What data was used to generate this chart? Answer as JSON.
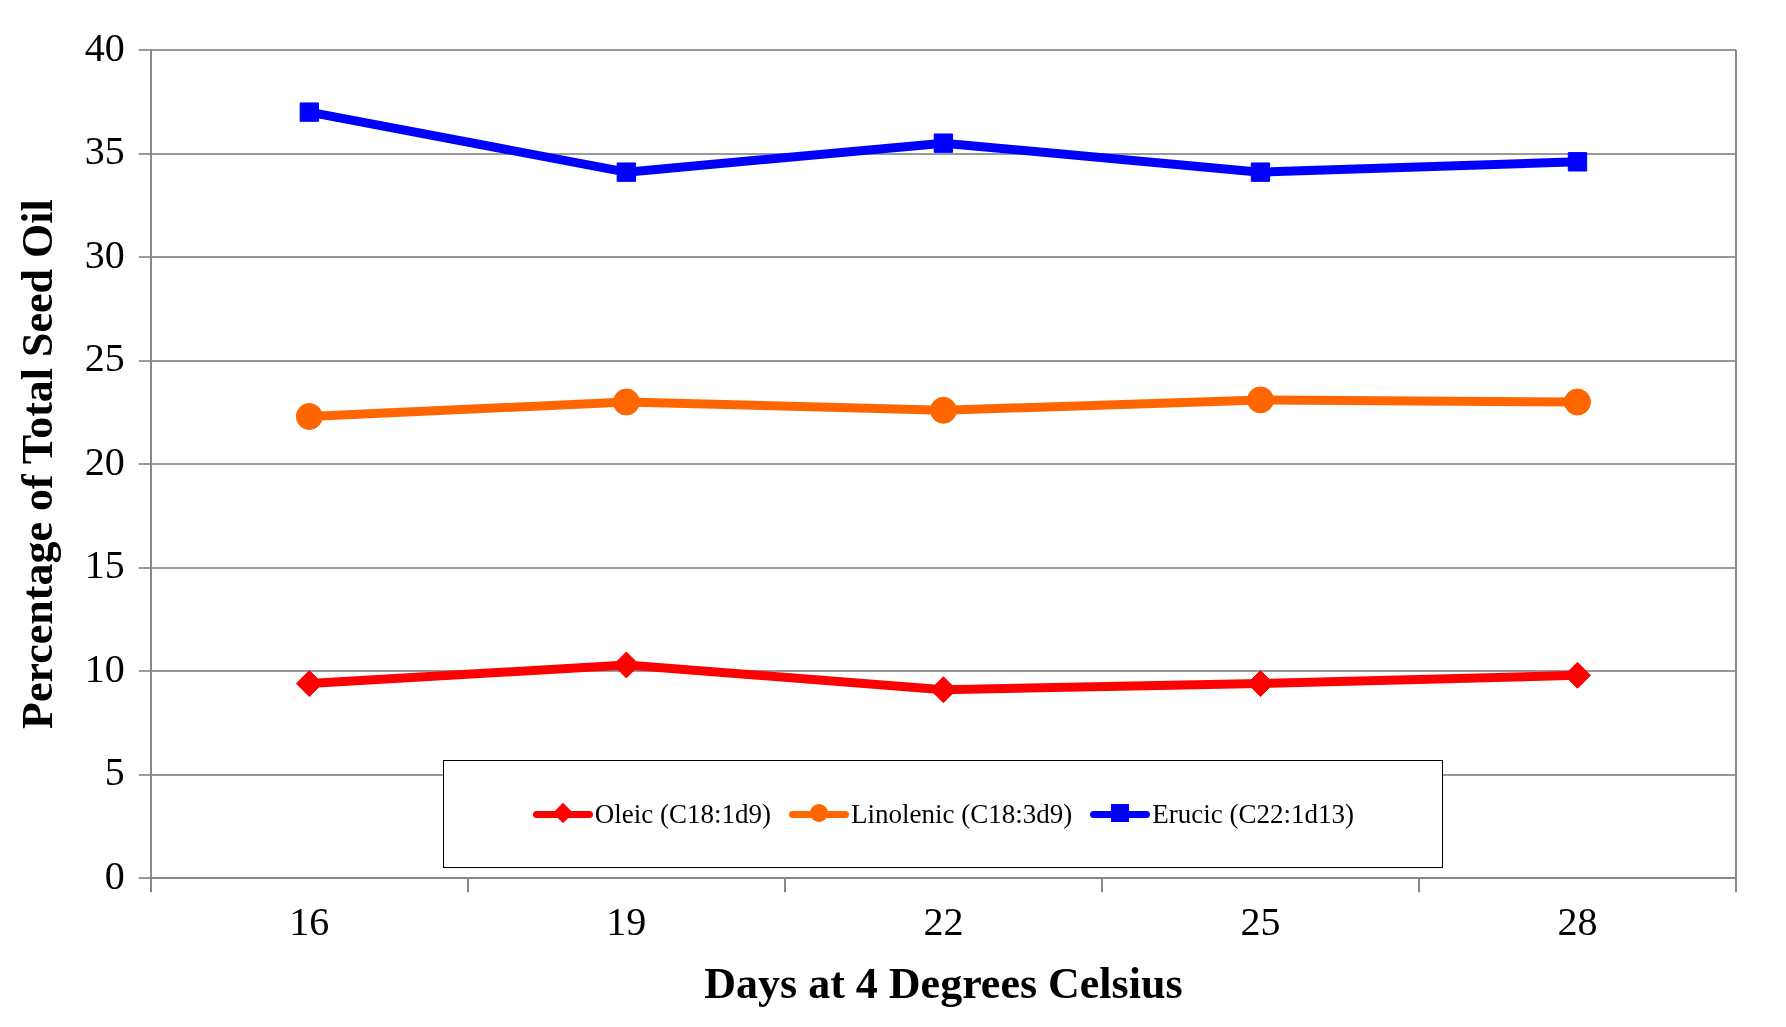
{
  "chart_data": {
    "type": "line",
    "xlabel": "Days at 4 Degrees Celsius",
    "ylabel": "Percentage of Total Seed Oil",
    "categories": [
      "16",
      "19",
      "22",
      "25",
      "28"
    ],
    "ylim": [
      0,
      40
    ],
    "yticks": [
      0,
      5,
      10,
      15,
      20,
      25,
      30,
      35,
      40
    ],
    "grid": "y",
    "legend": "bottom",
    "line_style": "solid",
    "series": [
      {
        "name": "Oleic (C18:1d9)",
        "color": "#ff0000",
        "marker": "diamond",
        "values": [
          9.4,
          10.3,
          9.1,
          9.4,
          9.8
        ]
      },
      {
        "name": "Linolenic (C18:3d9)",
        "color": "#ff6600",
        "marker": "circle",
        "values": [
          22.3,
          23.0,
          22.6,
          23.1,
          23.0
        ]
      },
      {
        "name": "Erucic (C22:1d13)",
        "color": "#0000ff",
        "marker": "square",
        "values": [
          37.0,
          34.1,
          35.5,
          34.1,
          34.6
        ]
      }
    ]
  }
}
